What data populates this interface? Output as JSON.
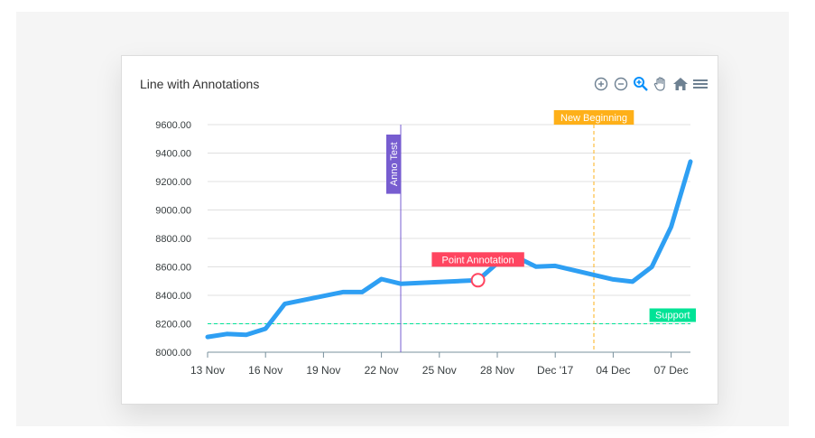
{
  "chart_data": {
    "type": "line",
    "title": "Line with Annotations",
    "x": [
      "2017-11-13",
      "2017-11-14",
      "2017-11-15",
      "2017-11-16",
      "2017-11-17",
      "2017-11-20",
      "2017-11-21",
      "2017-11-22",
      "2017-11-23",
      "2017-11-24",
      "2017-11-27",
      "2017-11-28",
      "2017-11-29",
      "2017-11-30",
      "2017-12-01",
      "2017-12-04",
      "2017-12-05",
      "2017-12-06",
      "2017-12-07",
      "2017-12-08"
    ],
    "series": [
      {
        "values": [
          8107,
          8128,
          8122,
          8165,
          8340,
          8423,
          8423,
          8514,
          8481,
          8487,
          8506,
          8626,
          8668,
          8602,
          8607,
          8512,
          8496,
          8600,
          8881,
          9340
        ]
      }
    ],
    "ylim": [
      8000,
      9600
    ],
    "yticks": [
      "9600.00",
      "9400.00",
      "9200.00",
      "9000.00",
      "8800.00",
      "8600.00",
      "8400.00",
      "8200.00",
      "8000.00"
    ],
    "ytick_values": [
      9600,
      9400,
      9200,
      9000,
      8800,
      8600,
      8400,
      8200,
      8000
    ],
    "xlim": [
      "2017-11-13",
      "2017-12-08"
    ],
    "xticks": [
      {
        "label": "13 Nov",
        "date": "2017-11-13"
      },
      {
        "label": "16 Nov",
        "date": "2017-11-16"
      },
      {
        "label": "19 Nov",
        "date": "2017-11-19"
      },
      {
        "label": "22 Nov",
        "date": "2017-11-22"
      },
      {
        "label": "25 Nov",
        "date": "2017-11-25"
      },
      {
        "label": "28 Nov",
        "date": "2017-11-28"
      },
      {
        "label": "Dec '17",
        "date": "2017-12-01"
      },
      {
        "label": "04 Dec",
        "date": "2017-12-04"
      },
      {
        "label": "07 Dec",
        "date": "2017-12-07"
      }
    ],
    "grid": true,
    "annotations": {
      "yaxis": [
        {
          "y": 8200,
          "label": "Support",
          "color": "#00E396"
        }
      ],
      "xaxis": [
        {
          "x": "2017-11-23",
          "label": "Anno Test",
          "color": "#775DD0"
        },
        {
          "x": "2017-12-03",
          "label": "New Beginning",
          "color": "#FEB019"
        }
      ],
      "points": [
        {
          "x": "2017-11-27",
          "y": 8506,
          "label": "Point Annotation",
          "color": "#FF4560"
        }
      ]
    },
    "colors": {
      "line": "#2e9ff3",
      "grid": "#e0e0e0",
      "axis": "#78909c"
    }
  },
  "toolbar": {
    "icons": [
      "zoom-in-icon",
      "zoom-out-icon",
      "selection-zoom-icon",
      "pan-hand-icon",
      "home-icon",
      "menu-icon"
    ]
  }
}
